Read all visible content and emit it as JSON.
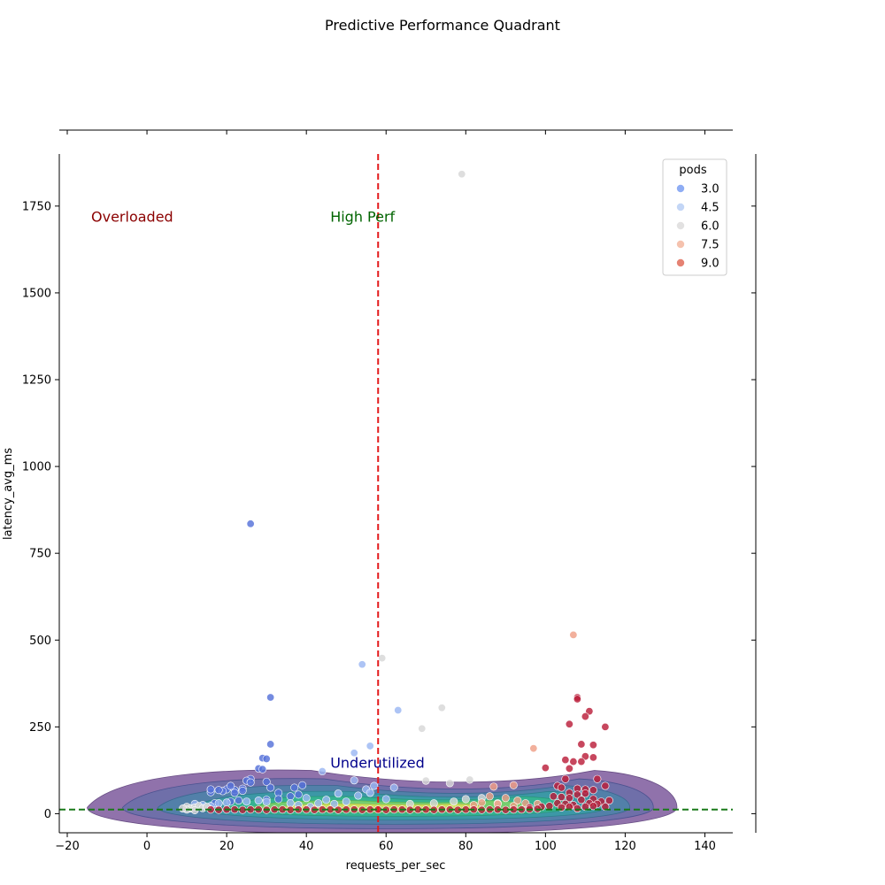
{
  "chart_data": {
    "type": "scatter",
    "title": "Predictive Performance Quadrant",
    "xlabel": "requests_per_sec",
    "ylabel": "latency_avg_ms",
    "xlim": [
      -22,
      147
    ],
    "ylim": [
      -55,
      1900
    ],
    "x_ticks": [
      -20,
      0,
      20,
      40,
      60,
      80,
      100,
      120,
      140
    ],
    "y_ticks": [
      0,
      250,
      500,
      750,
      1000,
      1250,
      1500,
      1750
    ],
    "grid": false,
    "legend": {
      "title": "pods",
      "position": "top-right",
      "entries": [
        {
          "label": "3.0",
          "color": "#7b9ff2"
        },
        {
          "label": "4.5",
          "color": "#b8cff5"
        },
        {
          "label": "6.0",
          "color": "#dddcdc"
        },
        {
          "label": "7.5",
          "color": "#f3b7a0"
        },
        {
          "label": "9.0",
          "color": "#e06c5a"
        }
      ]
    },
    "reference_lines": [
      {
        "orientation": "vertical",
        "value": 58,
        "color": "#e31a1c",
        "style": "dashed"
      },
      {
        "orientation": "horizontal",
        "value": 12,
        "color": "#1a7a1a",
        "style": "dashed"
      }
    ],
    "annotations": [
      {
        "text": "Overloaded",
        "x": -14,
        "y": 1720,
        "color": "#8b0000"
      },
      {
        "text": "High Perf",
        "x": 46,
        "y": 1720,
        "color": "#006400"
      },
      {
        "text": "Underutilized",
        "x": 46,
        "y": 148,
        "color": "#00008b"
      }
    ],
    "density": {
      "center_y": 18,
      "x_range": [
        -15,
        133
      ]
    },
    "series": [
      {
        "color": "#5571d9",
        "points": [
          [
            26,
            835
          ],
          [
            31,
            335
          ],
          [
            31,
            200
          ],
          [
            29,
            160
          ],
          [
            30,
            158
          ],
          [
            28,
            130
          ],
          [
            29,
            128
          ],
          [
            26,
            100
          ],
          [
            25,
            95
          ],
          [
            26,
            90
          ],
          [
            30,
            92
          ],
          [
            31,
            75
          ],
          [
            33,
            60
          ],
          [
            36,
            50
          ],
          [
            37,
            75
          ],
          [
            38,
            55
          ],
          [
            39,
            82
          ],
          [
            24,
            72
          ],
          [
            22,
            68
          ],
          [
            20,
            70
          ],
          [
            19,
            65
          ],
          [
            18,
            68
          ],
          [
            16,
            62
          ],
          [
            16,
            70
          ],
          [
            21,
            80
          ],
          [
            22,
            60
          ],
          [
            24,
            66
          ],
          [
            17,
            30
          ],
          [
            21,
            35
          ],
          [
            23,
            38
          ],
          [
            30,
            40
          ],
          [
            33,
            42
          ]
        ]
      },
      {
        "color": "#9bb7f3",
        "points": [
          [
            54,
            430
          ],
          [
            56,
            195
          ],
          [
            52,
            175
          ],
          [
            44,
            122
          ],
          [
            52,
            96
          ],
          [
            55,
            70
          ],
          [
            56,
            60
          ],
          [
            57,
            80
          ],
          [
            48,
            58
          ],
          [
            53,
            52
          ],
          [
            40,
            45
          ],
          [
            45,
            40
          ],
          [
            50,
            35
          ],
          [
            43,
            30
          ],
          [
            47,
            28
          ],
          [
            36,
            30
          ],
          [
            38,
            25
          ],
          [
            41,
            20
          ],
          [
            12,
            28
          ],
          [
            14,
            25
          ],
          [
            16,
            22
          ],
          [
            18,
            30
          ],
          [
            20,
            32
          ],
          [
            25,
            35
          ],
          [
            28,
            38
          ],
          [
            30,
            34
          ],
          [
            60,
            42
          ],
          [
            62,
            75
          ],
          [
            63,
            298
          ]
        ]
      },
      {
        "color": "#d7d7d7",
        "points": [
          [
            79,
            1842
          ],
          [
            59,
            448
          ],
          [
            74,
            305
          ],
          [
            69,
            245
          ],
          [
            70,
            95
          ],
          [
            76,
            88
          ],
          [
            81,
            98
          ],
          [
            77,
            35
          ],
          [
            72,
            30
          ],
          [
            66,
            28
          ],
          [
            80,
            42
          ],
          [
            84,
            45
          ],
          [
            10,
            20
          ],
          [
            11,
            15
          ],
          [
            12,
            18
          ],
          [
            13,
            22
          ],
          [
            14,
            16
          ],
          [
            15,
            20
          ],
          [
            10,
            12
          ],
          [
            12,
            10
          ],
          [
            9,
            15
          ],
          [
            88,
            30
          ]
        ]
      },
      {
        "color": "#ef9f86",
        "points": [
          [
            107,
            515
          ],
          [
            97,
            188
          ],
          [
            92,
            82
          ],
          [
            87,
            78
          ],
          [
            86,
            50
          ],
          [
            90,
            45
          ],
          [
            93,
            38
          ],
          [
            88,
            28
          ],
          [
            84,
            32
          ],
          [
            82,
            25
          ],
          [
            92,
            22
          ],
          [
            95,
            30
          ],
          [
            98,
            28
          ]
        ]
      },
      {
        "color": "#bb1f3b",
        "points": [
          [
            108,
            335
          ],
          [
            108,
            330
          ],
          [
            111,
            295
          ],
          [
            110,
            280
          ],
          [
            106,
            258
          ],
          [
            115,
            250
          ],
          [
            109,
            200
          ],
          [
            112,
            198
          ],
          [
            110,
            165
          ],
          [
            112,
            162
          ],
          [
            107,
            150
          ],
          [
            105,
            155
          ],
          [
            109,
            150
          ],
          [
            100,
            132
          ],
          [
            106,
            130
          ],
          [
            113,
            100
          ],
          [
            105,
            100
          ],
          [
            103,
            80
          ],
          [
            104,
            75
          ],
          [
            108,
            72
          ],
          [
            110,
            70
          ],
          [
            112,
            68
          ],
          [
            115,
            80
          ],
          [
            106,
            60
          ],
          [
            108,
            55
          ],
          [
            110,
            58
          ],
          [
            102,
            50
          ],
          [
            104,
            48
          ],
          [
            106,
            45
          ],
          [
            109,
            40
          ],
          [
            112,
            42
          ],
          [
            114,
            35
          ],
          [
            103,
            30
          ],
          [
            105,
            28
          ],
          [
            107,
            25
          ],
          [
            111,
            30
          ],
          [
            113,
            28
          ],
          [
            101,
            22
          ],
          [
            99,
            20
          ],
          [
            96,
            18
          ],
          [
            116,
            38
          ],
          [
            110,
            20
          ],
          [
            108,
            15
          ],
          [
            106,
            20
          ],
          [
            104,
            18
          ],
          [
            112,
            22
          ],
          [
            115,
            20
          ],
          [
            16,
            12
          ],
          [
            18,
            11
          ],
          [
            20,
            12
          ],
          [
            22,
            12
          ],
          [
            24,
            11
          ],
          [
            26,
            12
          ],
          [
            28,
            12
          ],
          [
            30,
            11
          ],
          [
            32,
            12
          ],
          [
            34,
            12
          ],
          [
            36,
            11
          ],
          [
            38,
            12
          ],
          [
            40,
            12
          ],
          [
            42,
            11
          ],
          [
            44,
            12
          ],
          [
            46,
            12
          ],
          [
            48,
            11
          ],
          [
            50,
            12
          ],
          [
            52,
            12
          ],
          [
            54,
            11
          ],
          [
            56,
            12
          ],
          [
            58,
            12
          ],
          [
            60,
            11
          ],
          [
            62,
            12
          ],
          [
            64,
            12
          ],
          [
            66,
            11
          ],
          [
            68,
            12
          ],
          [
            70,
            12
          ],
          [
            72,
            11
          ],
          [
            74,
            12
          ],
          [
            76,
            12
          ],
          [
            78,
            11
          ],
          [
            80,
            12
          ],
          [
            82,
            12
          ],
          [
            84,
            11
          ],
          [
            86,
            12
          ],
          [
            88,
            12
          ],
          [
            90,
            11
          ],
          [
            92,
            12
          ],
          [
            94,
            12
          ],
          [
            96,
            13
          ],
          [
            98,
            14
          ]
        ]
      }
    ]
  }
}
